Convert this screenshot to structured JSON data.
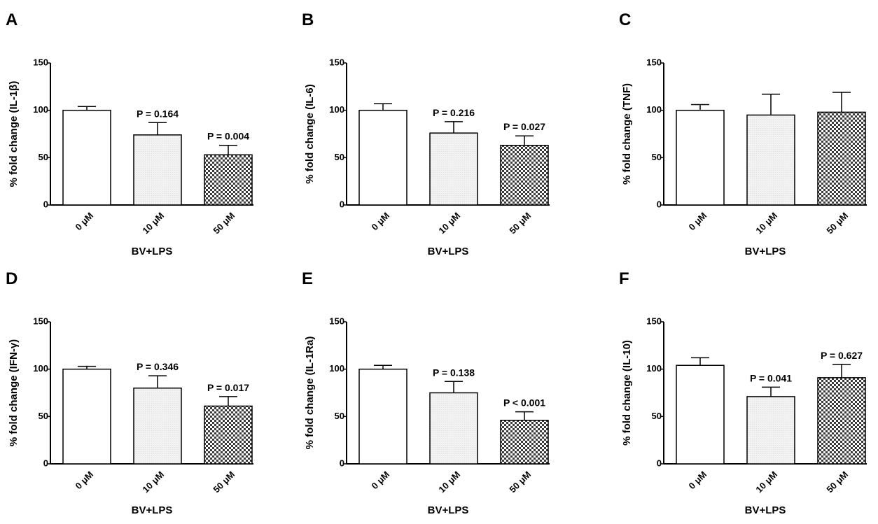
{
  "chart_data": [
    {
      "type": "bar",
      "panel_label": "A",
      "ylabel": "% fold change (IL-1β)",
      "xlabel": "BV+LPS",
      "categories": [
        "0 μM",
        "10 μM",
        "50 μM"
      ],
      "values": [
        100,
        74,
        53
      ],
      "errors": [
        4,
        13,
        10
      ],
      "annotations": [
        null,
        "P = 0.164",
        "P = 0.004"
      ],
      "colors": [
        "#ffffff",
        "#dcdcdc",
        "#3a3a3a"
      ],
      "ylim": [
        0,
        150
      ],
      "yticks": [
        0,
        50,
        100,
        150
      ]
    },
    {
      "type": "bar",
      "panel_label": "B",
      "ylabel": "% fold change (IL-6)",
      "xlabel": "BV+LPS",
      "categories": [
        "0 μM",
        "10 μM",
        "50 μM"
      ],
      "values": [
        100,
        76,
        63
      ],
      "errors": [
        7,
        12,
        10
      ],
      "annotations": [
        null,
        "P = 0.216",
        "P = 0.027"
      ],
      "colors": [
        "#ffffff",
        "#dcdcdc",
        "#3a3a3a"
      ],
      "ylim": [
        0,
        150
      ],
      "yticks": [
        0,
        50,
        100,
        150
      ]
    },
    {
      "type": "bar",
      "panel_label": "C",
      "ylabel": "% fold change (TNF)",
      "xlabel": "BV+LPS",
      "categories": [
        "0 μM",
        "10 μM",
        "50 μM"
      ],
      "values": [
        100,
        95,
        98
      ],
      "errors": [
        6,
        22,
        21
      ],
      "colors": [
        "#ffffff",
        "#dcdcdc",
        "#3a3a3a"
      ],
      "ylim": [
        0,
        150
      ],
      "yticks": [
        0,
        50,
        100,
        150
      ]
    },
    {
      "type": "bar",
      "panel_label": "D",
      "ylabel": "% fold change (IFN-γ)",
      "xlabel": "BV+LPS",
      "categories": [
        "0 μM",
        "10 μM",
        "50 μM"
      ],
      "values": [
        100,
        80,
        61
      ],
      "errors": [
        3,
        13,
        10
      ],
      "annotations": [
        null,
        "P = 0.346",
        "P = 0.017"
      ],
      "colors": [
        "#ffffff",
        "#dcdcdc",
        "#3a3a3a"
      ],
      "ylim": [
        0,
        150
      ],
      "yticks": [
        0,
        50,
        100,
        150
      ]
    },
    {
      "type": "bar",
      "panel_label": "E",
      "ylabel": "% fold change (IL-1Ra)",
      "xlabel": "BV+LPS",
      "categories": [
        "0 μM",
        "10 μM",
        "50 μM"
      ],
      "values": [
        100,
        75,
        46
      ],
      "errors": [
        4,
        12,
        9
      ],
      "annotations": [
        null,
        "P = 0.138",
        "P < 0.001"
      ],
      "colors": [
        "#ffffff",
        "#dcdcdc",
        "#3a3a3a"
      ],
      "ylim": [
        0,
        150
      ],
      "yticks": [
        0,
        50,
        100,
        150
      ]
    },
    {
      "type": "bar",
      "panel_label": "F",
      "ylabel": "% fold change (IL-10)",
      "xlabel": "BV+LPS",
      "categories": [
        "0 μM",
        "10 μM",
        "50 μM"
      ],
      "values": [
        104,
        71,
        91
      ],
      "errors": [
        8,
        10,
        14
      ],
      "annotations": [
        null,
        "P = 0.041",
        "P = 0.627"
      ],
      "colors": [
        "#ffffff",
        "#dcdcdc",
        "#3a3a3a"
      ],
      "ylim": [
        0,
        150
      ],
      "yticks": [
        0,
        50,
        100,
        150
      ]
    }
  ]
}
